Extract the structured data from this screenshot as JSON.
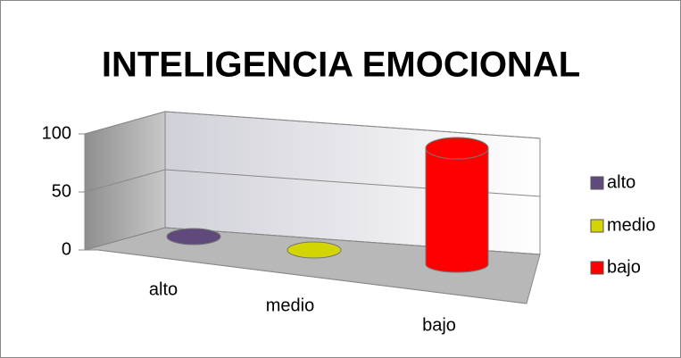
{
  "chart_data": {
    "type": "bar3d-cylinder",
    "title": "INTELIGENCIA EMOCIONAL",
    "categories": [
      "alto",
      "medio",
      "bajo"
    ],
    "series": [
      {
        "name": "alto",
        "color": "#604a7b",
        "values": [
          0,
          null,
          null
        ]
      },
      {
        "name": "medio",
        "color": "#d4d400",
        "values": [
          null,
          0,
          null
        ]
      },
      {
        "name": "bajo",
        "color": "#ff0000",
        "values": [
          null,
          null,
          100
        ]
      }
    ],
    "ylim": [
      0,
      100
    ],
    "yticks": [
      0,
      50,
      100
    ],
    "grid": true,
    "legend": "right"
  }
}
